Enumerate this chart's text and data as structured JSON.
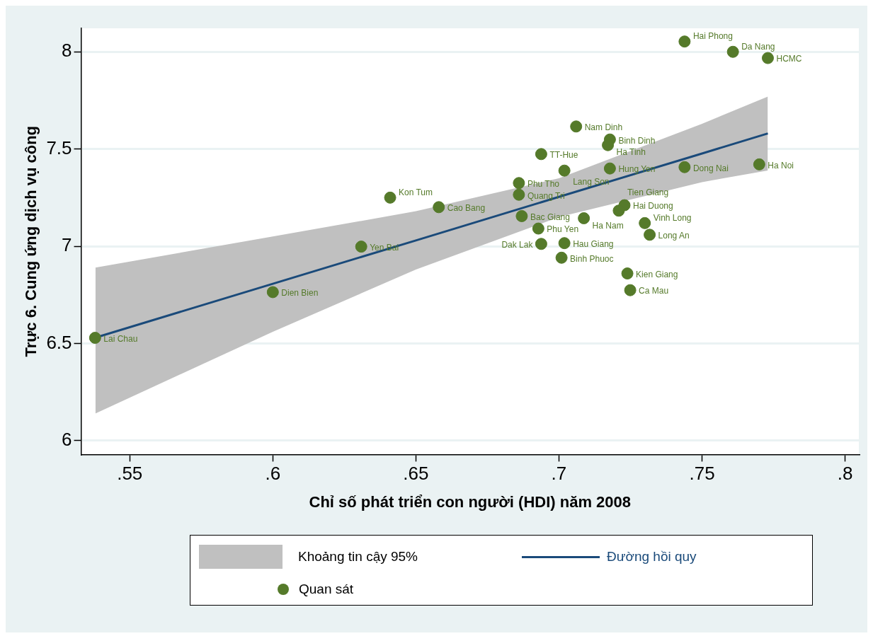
{
  "chart_data": {
    "type": "scatter",
    "xlabel": "Chỉ số phát triển con người (HDI) năm 2008",
    "ylabel": "Trực 6. Cung ứng dịch vụ công",
    "xlim": [
      0.533,
      0.8048
    ],
    "ylim": [
      5.929,
      8.121
    ],
    "xticks": [
      {
        "value": 0.55,
        "label": ".55"
      },
      {
        "value": 0.6,
        "label": ".6"
      },
      {
        "value": 0.65,
        "label": ".65"
      },
      {
        "value": 0.7,
        "label": ".7"
      },
      {
        "value": 0.75,
        "label": ".75"
      },
      {
        "value": 0.8,
        "label": ".8"
      }
    ],
    "yticks": [
      6,
      6.5,
      7,
      7.5,
      8
    ],
    "grid": "y",
    "legend": "bottom",
    "marker": "circle",
    "series": [
      {
        "name": "Đường hồi quy",
        "type": "line",
        "color": "#1a4a7a",
        "marker": "none",
        "x": [
          0.538,
          0.6,
          0.65,
          0.7,
          0.75,
          0.773
        ],
        "values": [
          6.53,
          6.807,
          7.03,
          7.254,
          7.477,
          7.58
        ],
        "lower": [
          6.14,
          6.56,
          6.88,
          7.15,
          7.33,
          7.39
        ],
        "upper": [
          6.89,
          7.05,
          7.18,
          7.35,
          7.63,
          7.77
        ]
      },
      {
        "name": "Quan sát",
        "color": "#557a2a",
        "x": [
          0.7439,
          0.7608,
          0.773,
          0.706,
          0.7178,
          0.7171,
          0.6938,
          0.7019,
          0.7178,
          0.7439,
          0.77,
          0.686,
          0.686,
          0.641,
          0.658,
          0.7229,
          0.7209,
          0.687,
          0.7087,
          0.73,
          0.6928,
          0.7317,
          0.6309,
          0.6938,
          0.7019,
          0.7009,
          0.7239,
          0.7249,
          0.6,
          0.5379
        ],
        "values": [
          8.053,
          8.0,
          7.968,
          7.616,
          7.549,
          7.52,
          7.474,
          7.389,
          7.4,
          7.407,
          7.421,
          7.325,
          7.265,
          7.25,
          7.201,
          7.211,
          7.183,
          7.155,
          7.144,
          7.119,
          7.091,
          7.059,
          6.998,
          7.012,
          7.016,
          6.941,
          6.86,
          6.774,
          6.764,
          6.529
        ]
      }
    ],
    "annotations": [
      "Khoảng tin cậy 95%",
      {
        "text": "Hai Phong",
        "x": 0.7439,
        "y": 8.053
      },
      {
        "text": "Da Nang",
        "x": 0.7608,
        "y": 8.0
      },
      {
        "text": "HCMC",
        "x": 0.773,
        "y": 7.968
      },
      {
        "text": "Nam Dinh",
        "x": 0.706,
        "y": 7.616
      },
      {
        "text": "Binh Dinh",
        "x": 0.7178,
        "y": 7.549
      },
      {
        "text": "Ha Tinh",
        "x": 0.7171,
        "y": 7.52
      },
      {
        "text": "TT-Hue",
        "x": 0.6938,
        "y": 7.474
      },
      {
        "text": "Lang Son",
        "x": 0.7019,
        "y": 7.389
      },
      {
        "text": "Hung Yen",
        "x": 0.7178,
        "y": 7.4
      },
      {
        "text": "Dong Nai",
        "x": 0.7439,
        "y": 7.407
      },
      {
        "text": "Ha Noi",
        "x": 0.77,
        "y": 7.421
      },
      {
        "text": "Phu Tho",
        "x": 0.686,
        "y": 7.325
      },
      {
        "text": "Quang Tri",
        "x": 0.686,
        "y": 7.265
      },
      {
        "text": "Kon Tum",
        "x": 0.641,
        "y": 7.25
      },
      {
        "text": "Cao Bang",
        "x": 0.658,
        "y": 7.201
      },
      {
        "text": "Hai Duong",
        "x": 0.7229,
        "y": 7.211
      },
      {
        "text": "Tien Giang",
        "x": 0.7209,
        "y": 7.183
      },
      {
        "text": "Bac Giang",
        "x": 0.687,
        "y": 7.155
      },
      {
        "text": "Ha Nam",
        "x": 0.7087,
        "y": 7.144
      },
      {
        "text": "Vinh Long",
        "x": 0.73,
        "y": 7.119
      },
      {
        "text": "Phu Yen",
        "x": 0.6928,
        "y": 7.091
      },
      {
        "text": "Long An",
        "x": 0.7317,
        "y": 7.059
      },
      {
        "text": "Yen Bai",
        "x": 0.6309,
        "y": 6.998
      },
      {
        "text": "Dak Lak",
        "x": 0.6938,
        "y": 7.012
      },
      {
        "text": "Hau Giang",
        "x": 0.7019,
        "y": 7.016
      },
      {
        "text": "Binh Phuoc",
        "x": 0.7009,
        "y": 6.941
      },
      {
        "text": "Kien Giang",
        "x": 0.7239,
        "y": 6.86
      },
      {
        "text": "Ca Mau",
        "x": 0.7249,
        "y": 6.774
      },
      {
        "text": "Dien Bien",
        "x": 0.6,
        "y": 6.764
      },
      {
        "text": "Lai Chau",
        "x": 0.5379,
        "y": 6.529
      }
    ]
  }
}
